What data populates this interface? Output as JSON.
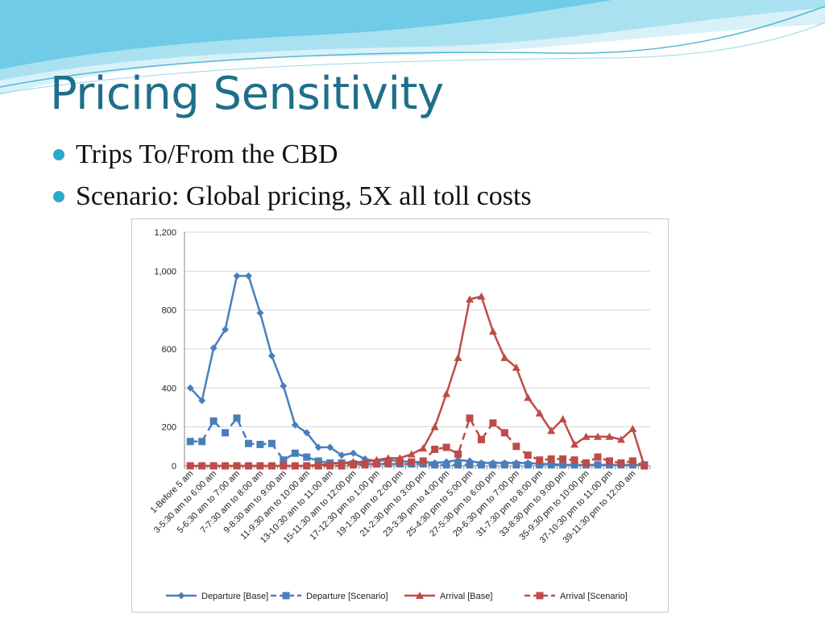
{
  "slide": {
    "title": "Pricing Sensitivity",
    "bullets": [
      "Trips To/From the CBD",
      "Scenario: Global pricing, 5X all toll costs"
    ],
    "colors": {
      "title": "#1f6f8b",
      "bullet": "#29aacb",
      "wave_light": "#cfeef7",
      "wave_mid": "#7fd3ea"
    }
  },
  "chart_data": {
    "type": "line",
    "x_tick_labels": [
      "1-Before 5 am",
      "3-5:30 am to 6:00 am",
      "5-6:30 am to 7:00 am",
      "7-7:30 am to 8:00 am",
      "9-8:30 am to 9:00 am",
      "11-9:30 am to 10:00 am",
      "13-10:30 am to 11:00 am",
      "15-11:30 am to 12:00 pm",
      "17-12:30 pm to 1:00 pm",
      "19-1:30 pm to 2:00 pm",
      "21-2:30 pm to 3:00 pm",
      "23-3:30 pm to 4:00 pm",
      "25-4:30 pm to 5:00 pm",
      "27-5:30 pm to 6:00 pm",
      "29-6:30 pm to 7:00 pm",
      "31-7:30 pm to 8:00 pm",
      "33-8:30 pm to 9:00 pm",
      "35-9:30 pm to 10:00 pm",
      "37-10:30 pm to 11:00 pm",
      "39-11:30 pm to 12:00 am"
    ],
    "x_count": 40,
    "y_ticks": [
      "0",
      "200",
      "400",
      "600",
      "800",
      "1,000",
      "1,200"
    ],
    "ylim": [
      0,
      1200
    ],
    "grid": true,
    "legend_position": "bottom",
    "series": [
      {
        "name": "Departure [Base]",
        "color": "#4a7ebb",
        "marker": "diamond",
        "dash": false,
        "values": [
          400,
          335,
          605,
          700,
          975,
          975,
          785,
          565,
          410,
          210,
          170,
          95,
          95,
          55,
          65,
          35,
          25,
          30,
          25,
          20,
          20,
          15,
          20,
          30,
          25,
          15,
          15,
          15,
          15,
          15,
          10,
          10,
          5,
          5,
          5,
          5,
          5,
          5,
          5,
          5
        ]
      },
      {
        "name": "Departure [Scenario]",
        "color": "#4a7ebb",
        "marker": "square",
        "dash": true,
        "values": [
          125,
          125,
          230,
          170,
          245,
          115,
          110,
          115,
          30,
          65,
          45,
          25,
          15,
          15,
          10,
          10,
          10,
          10,
          10,
          10,
          10,
          5,
          5,
          5,
          5,
          5,
          5,
          5,
          5,
          5,
          5,
          5,
          5,
          5,
          5,
          5,
          5,
          5,
          5,
          5
        ]
      },
      {
        "name": "Arrival [Base]",
        "color": "#be4b48",
        "marker": "triangle",
        "dash": false,
        "values": [
          0,
          0,
          0,
          0,
          0,
          0,
          0,
          0,
          0,
          0,
          0,
          5,
          10,
          15,
          20,
          20,
          30,
          40,
          40,
          60,
          90,
          200,
          370,
          555,
          855,
          870,
          690,
          555,
          505,
          350,
          270,
          180,
          240,
          110,
          150,
          150,
          150,
          135,
          190,
          0
        ]
      },
      {
        "name": "Arrival [Scenario]",
        "color": "#be4b48",
        "marker": "square",
        "dash": true,
        "values": [
          0,
          0,
          0,
          0,
          0,
          0,
          0,
          0,
          0,
          0,
          0,
          0,
          0,
          0,
          5,
          5,
          10,
          15,
          20,
          20,
          25,
          85,
          95,
          60,
          245,
          135,
          220,
          170,
          100,
          55,
          30,
          35,
          35,
          30,
          15,
          45,
          25,
          15,
          25,
          0
        ]
      }
    ]
  }
}
